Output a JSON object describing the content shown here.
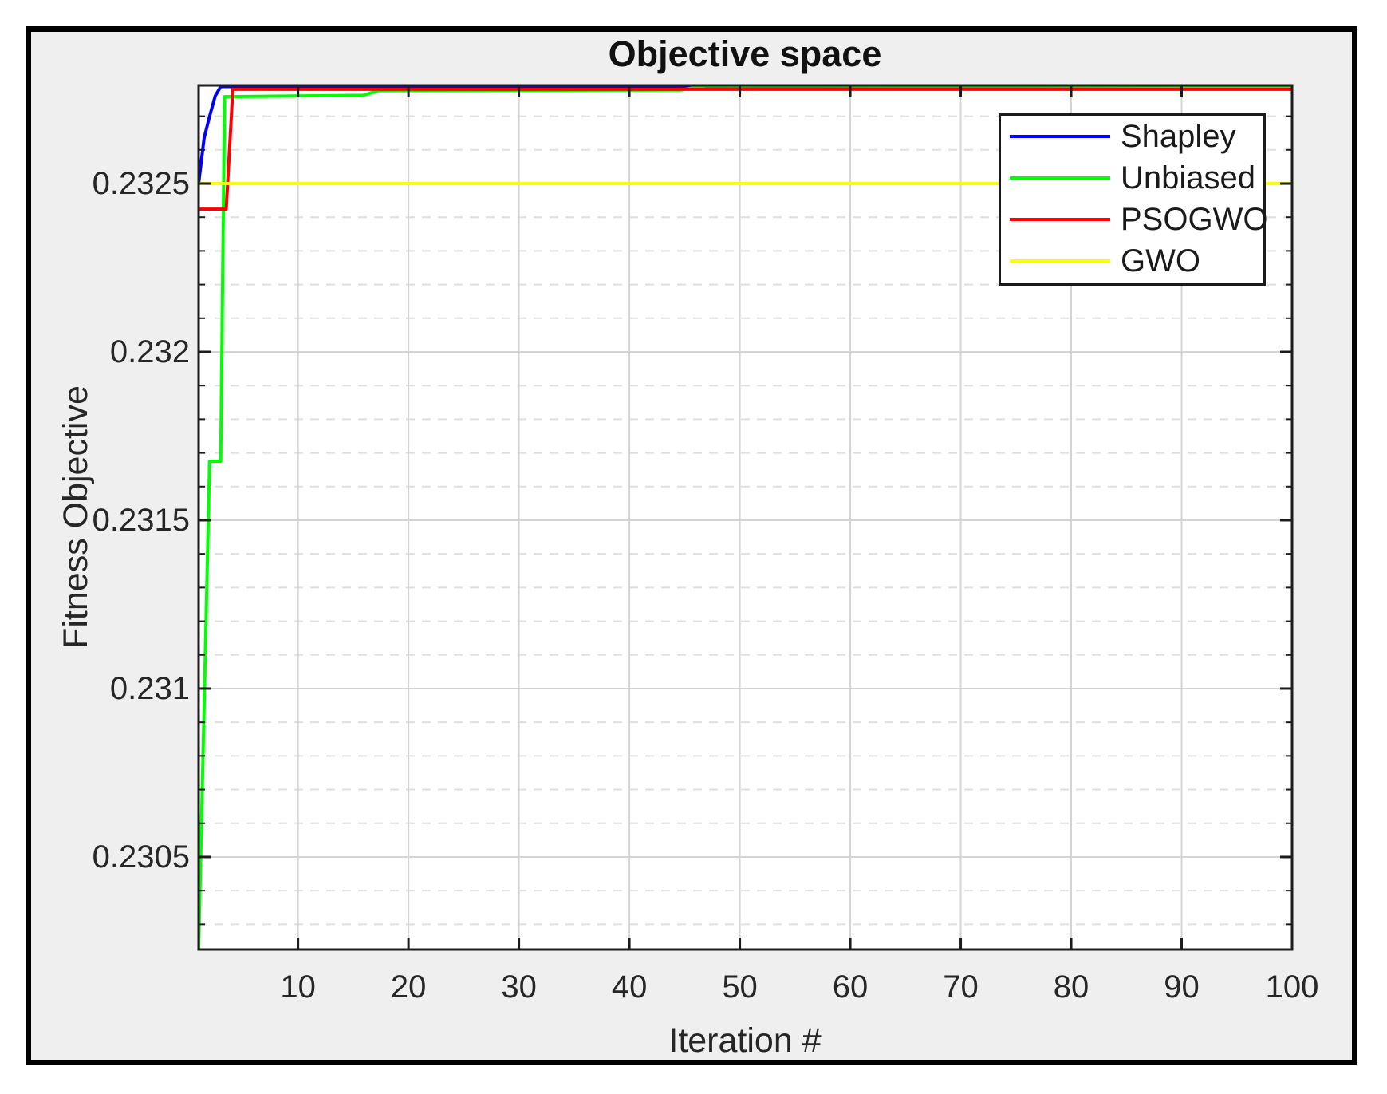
{
  "figure": {
    "background_color": "#EFEFEF",
    "border_color": "#000000",
    "plot_background": "#FFFFFF"
  },
  "chart_data": {
    "type": "line",
    "title": "Objective space",
    "xlabel": "Iteration #",
    "ylabel": "Fitness Objective",
    "xlim": [
      1,
      100
    ],
    "ylim": [
      0.230225,
      0.2327915
    ],
    "x_ticks": [
      10,
      20,
      30,
      40,
      50,
      60,
      70,
      80,
      90,
      100
    ],
    "y_ticks": [
      {
        "value": 0.2325,
        "label": "0.2325"
      },
      {
        "value": 0.232,
        "label": "0.232"
      },
      {
        "value": 0.2315,
        "label": "0.2315"
      },
      {
        "value": 0.231,
        "label": "0.231"
      },
      {
        "value": 0.2305,
        "label": "0.2305"
      }
    ],
    "y_minor_ticks": [
      0.2303,
      0.2304,
      0.2306,
      0.2307,
      0.2308,
      0.2309,
      0.2311,
      0.2312,
      0.2313,
      0.2314,
      0.2316,
      0.2317,
      0.2318,
      0.2319,
      0.2321,
      0.2322,
      0.2323,
      0.2324,
      0.2326,
      0.2327
    ],
    "grid": {
      "x_major": true,
      "y_major": true,
      "y_minor_dashed": true,
      "x_minor": false
    },
    "grid_colors": {
      "major": "#D4D4D4",
      "minor": "#DFDFDF",
      "axis_frame": "#1C1C1C"
    },
    "legend": {
      "position": "top-right"
    },
    "series": [
      {
        "name": "Shapley",
        "color": "#0000FF",
        "points": [
          [
            1,
            0.2325
          ],
          [
            1.5,
            0.232635
          ],
          [
            2,
            0.2327
          ],
          [
            2.5,
            0.23276
          ],
          [
            3,
            0.232788
          ],
          [
            100,
            0.23279
          ]
        ]
      },
      {
        "name": "Unbiased",
        "color": "#00FF00",
        "points": [
          [
            1,
            0.23022
          ],
          [
            2,
            0.231675
          ],
          [
            3,
            0.231675
          ],
          [
            3.35,
            0.232758
          ],
          [
            15.9,
            0.232762
          ],
          [
            17.3,
            0.232776
          ],
          [
            44.7,
            0.232778
          ],
          [
            46.9,
            0.23279
          ],
          [
            100,
            0.23279
          ]
        ]
      },
      {
        "name": "PSOGWO",
        "color": "#FF0000",
        "points": [
          [
            1,
            0.232424
          ],
          [
            3.5,
            0.232424
          ],
          [
            4.1,
            0.23278
          ],
          [
            100,
            0.23278
          ]
        ]
      },
      {
        "name": "GWO",
        "color": "#FFFF00",
        "points": [
          [
            1,
            0.2325
          ],
          [
            100,
            0.2325
          ]
        ]
      }
    ]
  }
}
